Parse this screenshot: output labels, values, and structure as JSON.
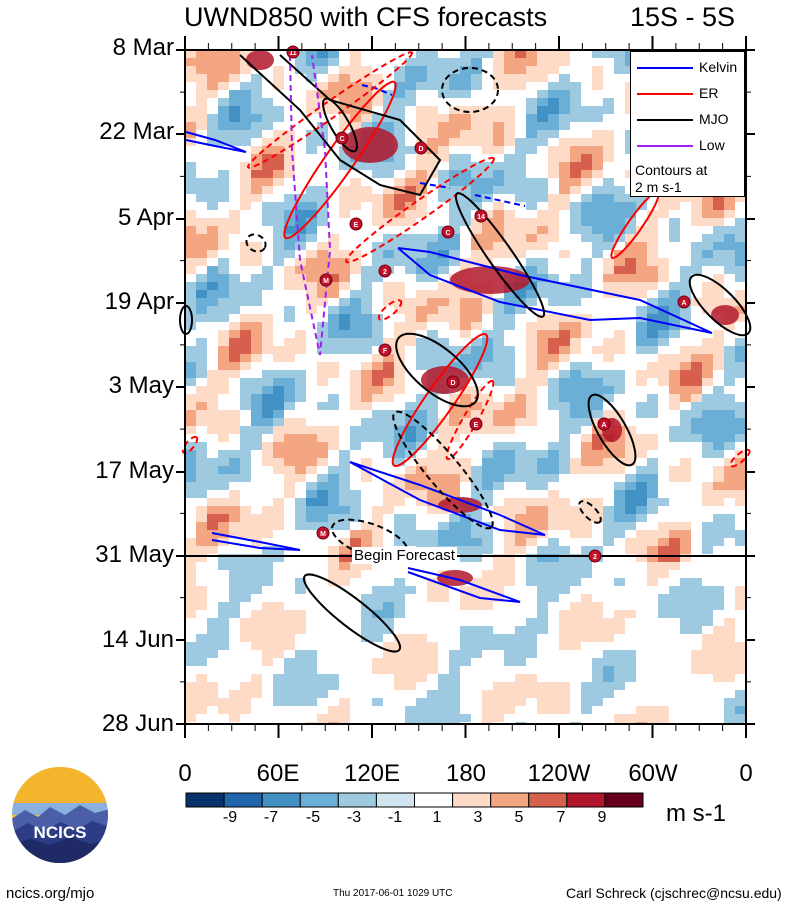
{
  "chart_data": {
    "type": "heatmap",
    "title": "UWND850 with CFS forecasts",
    "subtitle": "15S - 5S",
    "x_ticks": [
      "0",
      "60E",
      "120E",
      "180",
      "120W",
      "60W",
      "0"
    ],
    "y_ticks": [
      "8 Mar",
      "22 Mar",
      "5 Apr",
      "19 Apr",
      "3 May",
      "17 May",
      "31 May",
      "14 Jun",
      "28 Jun"
    ],
    "xlim": [
      0,
      360
    ],
    "ylim": [
      "8 Mar",
      "28 Jun"
    ],
    "colorbar": {
      "labels": [
        "-9",
        "-7",
        "-5",
        "-3",
        "-1",
        "1",
        "3",
        "5",
        "7",
        "9"
      ],
      "units": "m s-1",
      "colors": [
        "#08306b",
        "#2166ac",
        "#4292c6",
        "#6baed6",
        "#9ecae1",
        "#d1e5f0",
        "#ffffff",
        "#fddbc7",
        "#f4a582",
        "#d6604d",
        "#b2182b",
        "#8b0a1e",
        "#67001f"
      ]
    },
    "legend": {
      "entries": [
        {
          "name": "Kelvin",
          "color": "#0000ff"
        },
        {
          "name": "ER",
          "color": "#ff0000"
        },
        {
          "name": "MJO",
          "color": "#000000"
        },
        {
          "name": "Low",
          "color": "#a020f0"
        }
      ],
      "note_line1": "Contours at",
      "note_line2": "2 m s-1",
      "placement": "top-right"
    },
    "forecast_label": "Begin Forecast",
    "forecast_start": "31 May",
    "storm_marks": [
      "11",
      "C",
      "D",
      "14",
      "E",
      "C",
      "M",
      "2",
      "A",
      "F",
      "D",
      "E",
      "A",
      "M",
      "2"
    ]
  },
  "footer": {
    "url": "ncics.org/mjo",
    "timestamp": "Thu 2017-06-01 1029 UTC",
    "author": "Carl Schreck (cjschrec@ncsu.edu)",
    "logo_text": "NCICS"
  }
}
